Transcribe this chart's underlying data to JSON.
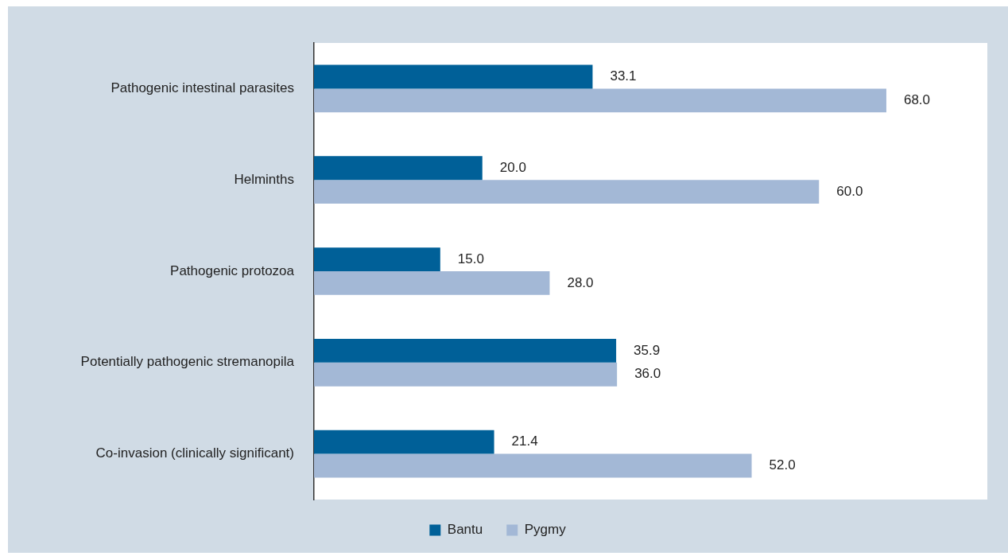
{
  "chart_data": {
    "type": "bar",
    "orientation": "horizontal",
    "categories": [
      "Pathogenic intestinal parasites",
      "Helminths",
      "Pathogenic protozoa",
      "Potentially pathogenic stremanopila",
      "Co-invasion (clinically significant)"
    ],
    "series": [
      {
        "name": "Bantu",
        "color": "#006098",
        "values": [
          33.1,
          20.0,
          15.0,
          35.9,
          21.4
        ],
        "value_labels": [
          "33.1",
          "20.0",
          "15.0",
          "35.9",
          "21.4"
        ]
      },
      {
        "name": "Pygmy",
        "color": "#a3b8d6",
        "values": [
          68.0,
          60.0,
          28.0,
          36.0,
          52.0
        ],
        "value_labels": [
          "68.0",
          "60.0",
          "28.0",
          "36.0",
          "52.0"
        ]
      }
    ],
    "legend": "bottom"
  }
}
